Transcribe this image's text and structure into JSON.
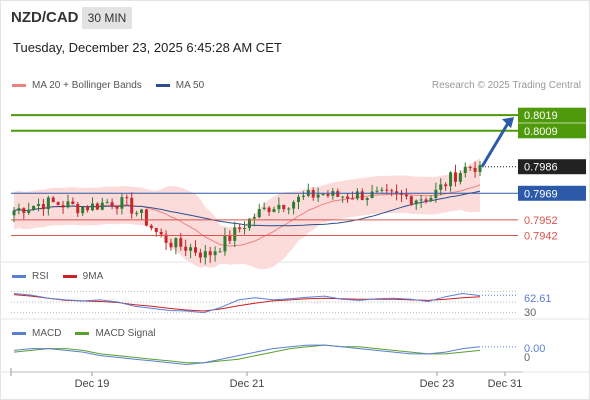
{
  "header": {
    "symbol": "NZD/CAD",
    "timeframe": "30 MIN",
    "datetime": "Tuesday, December 23, 2025 6:45:28 AM CET"
  },
  "legend": {
    "ma20": "MA 20 + Bollinger Bands",
    "ma50": "MA 50",
    "credit": "Research © 2025 Trading Central"
  },
  "colors": {
    "bullish": "#2e7d32",
    "bearish": "#c62828",
    "bollinger_fill": "#fbd5d5",
    "ma20": "#f08080",
    "ma50": "#2b4f8c",
    "target_green": "#4f9a0a",
    "pivot_blue": "#2d5aa8",
    "support_red": "#d9534f",
    "current_bg": "#222222",
    "rsi": "#5b7fd6",
    "rsi_ma": "#cc2222",
    "macd": "#5b7fd6",
    "macd_signal": "#5aa02c"
  },
  "chart_data": {
    "type": "candlestick",
    "y_range": [
      0.7925,
      0.803
    ],
    "x_ticks": [
      "Dec 19",
      "Dec 21",
      "Dec 23",
      "Dec 31"
    ],
    "levels": [
      {
        "label": "0.8019",
        "value": 0.8019,
        "kind": "target"
      },
      {
        "label": "0.8009",
        "value": 0.8009,
        "kind": "target"
      },
      {
        "label": "0.7986",
        "value": 0.7986,
        "kind": "current"
      },
      {
        "label": "0.7969",
        "value": 0.7969,
        "kind": "pivot"
      },
      {
        "label": "0.7952",
        "value": 0.7952,
        "kind": "support"
      },
      {
        "label": "0.7942",
        "value": 0.7942,
        "kind": "support"
      }
    ],
    "price_anchors": [
      0.7958,
      0.7961,
      0.7963,
      0.7962,
      0.796,
      0.7961,
      0.7964,
      0.7962,
      0.7954,
      0.7942,
      0.7936,
      0.7934,
      0.7929,
      0.7937,
      0.7946,
      0.7955,
      0.7961,
      0.7963,
      0.7966,
      0.7969,
      0.7967,
      0.7968,
      0.7968,
      0.7967,
      0.7967,
      0.7966,
      0.7967,
      0.7977,
      0.7985,
      0.7987
    ],
    "rsi": {
      "name": "RSI",
      "ma_name": "9MA",
      "value_label": "62.61",
      "level_label": "30",
      "range": [
        0,
        100
      ],
      "levels": [
        70,
        50,
        30
      ],
      "values": [
        66,
        63,
        57,
        54,
        52,
        54,
        50,
        42,
        38,
        34,
        33,
        30,
        40,
        54,
        58,
        54,
        56,
        59,
        61,
        55,
        53,
        56,
        57,
        55,
        51,
        60,
        66,
        62
      ],
      "ma_values": [
        64,
        61,
        57,
        53,
        52,
        51,
        49,
        45,
        42,
        38,
        35,
        33,
        37,
        43,
        48,
        52,
        54,
        56,
        57,
        56,
        55,
        55,
        55,
        54,
        53,
        55,
        58,
        60
      ]
    },
    "macd": {
      "name": "MACD",
      "signal_name": "MACD Signal",
      "value_label": "0.00",
      "zero_label": "0",
      "range": [
        -0.0009,
        0.0008
      ],
      "values": [
        0.0001,
        0.0002,
        0.0002,
        0.0001,
        0.0,
        -0.0002,
        -0.0003,
        -0.0004,
        -0.0005,
        -0.0006,
        -0.0007,
        -0.0006,
        -0.0004,
        -0.0002,
        0.0,
        0.0002,
        0.0003,
        0.0004,
        0.0004,
        0.0003,
        0.0002,
        0.0001,
        0.0,
        -0.0001,
        -0.0001,
        0.0,
        0.0002,
        0.0003
      ],
      "signal_values": [
        0.0,
        0.0001,
        0.0002,
        0.0002,
        0.0001,
        -0.0001,
        -0.0002,
        -0.0003,
        -0.0004,
        -0.0005,
        -0.0006,
        -0.0006,
        -0.0005,
        -0.0004,
        -0.0002,
        0.0,
        0.0002,
        0.0003,
        0.0004,
        0.0003,
        0.0003,
        0.0002,
        0.0001,
        0.0,
        -0.0001,
        -0.0001,
        0.0,
        0.0001
      ]
    }
  }
}
